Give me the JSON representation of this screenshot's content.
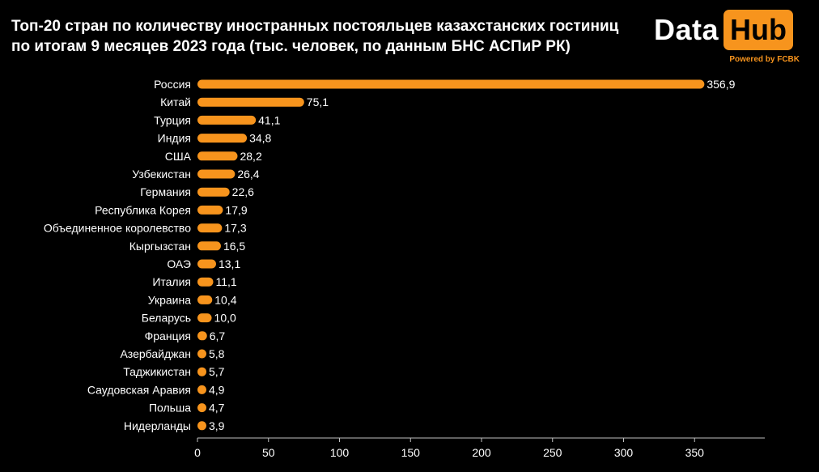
{
  "header": {
    "title_line1": "Топ-20 стран по количеству иностранных постояльцев казахстанских гостиниц",
    "title_line2": "по итогам 9 месяцев 2023 года  (тыс. человек, по данным БНС АСПиР РК)"
  },
  "logo": {
    "data_text": "Data",
    "hub_text": "Hub",
    "powered_text": "Powered by FCBK"
  },
  "colors": {
    "background": "#000000",
    "bar": "#f7941d",
    "text": "#ffffff",
    "axis": "#bfbfbf"
  },
  "chart_data": {
    "type": "bar",
    "orientation": "horizontal",
    "categories": [
      "Россия",
      "Китай",
      "Турция",
      "Индия",
      "США",
      "Узбекистан",
      "Германия",
      "Республика Корея",
      "Объединенное королевство",
      "Кыргызстан",
      "ОАЭ",
      "Италия",
      "Украина",
      "Беларусь",
      "Франция",
      "Азербайджан",
      "Таджикистан",
      "Саудовская Аравия",
      "Польша",
      "Нидерланды"
    ],
    "values": [
      356.9,
      75.1,
      41.1,
      34.8,
      28.2,
      26.4,
      22.6,
      17.9,
      17.3,
      16.5,
      13.1,
      11.1,
      10.4,
      10.0,
      6.7,
      5.8,
      5.7,
      4.9,
      4.7,
      3.9
    ],
    "value_labels": [
      "356,9",
      "75,1",
      "41,1",
      "34,8",
      "28,2",
      "26,4",
      "22,6",
      "17,9",
      "17,3",
      "16,5",
      "13,1",
      "11,1",
      "10,4",
      "10,0",
      "6,7",
      "5,8",
      "5,7",
      "4,9",
      "4,7",
      "3,9"
    ],
    "xticks": [
      0,
      50,
      100,
      150,
      200,
      250,
      300,
      350
    ],
    "xlim": [
      0,
      400
    ],
    "grid": false,
    "legend": "none"
  }
}
